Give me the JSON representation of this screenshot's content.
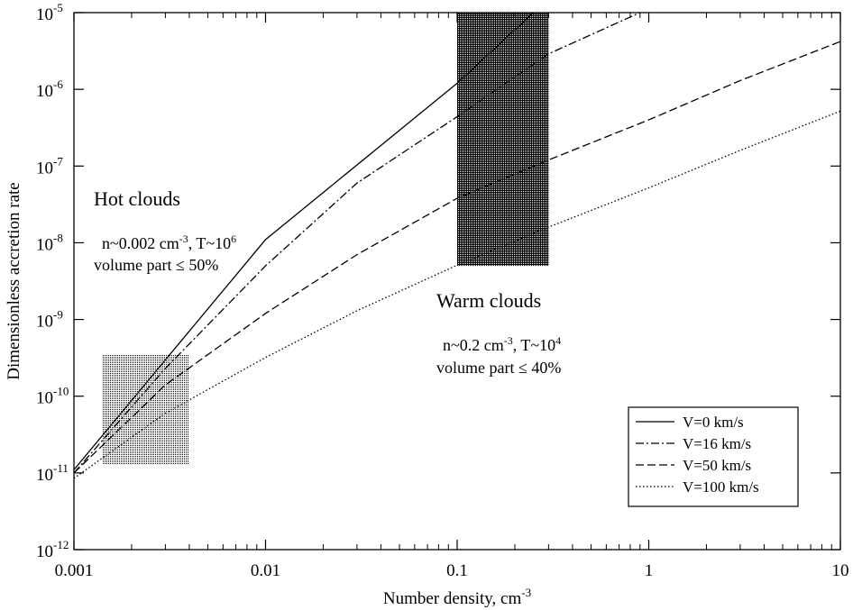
{
  "chart_data": {
    "type": "line",
    "xscale": "log",
    "yscale": "log",
    "xlim": [
      0.001,
      10
    ],
    "ylim": [
      1e-12,
      1e-05
    ],
    "xlabel": "Number density, cm",
    "xlabel_sup": "-3",
    "ylabel": "Dimensionless accretion rate",
    "x_ticks": [
      {
        "value": 0.001,
        "label": "0.001"
      },
      {
        "value": 0.01,
        "label": "0.01"
      },
      {
        "value": 0.1,
        "label": "0.1"
      },
      {
        "value": 1,
        "label": "1"
      },
      {
        "value": 10,
        "label": "10"
      }
    ],
    "y_ticks": [
      {
        "value": 1e-12,
        "base": "10",
        "exp": "-12"
      },
      {
        "value": 1e-11,
        "base": "10",
        "exp": "-11"
      },
      {
        "value": 1e-10,
        "base": "10",
        "exp": "-10"
      },
      {
        "value": 1e-09,
        "base": "10",
        "exp": "-9"
      },
      {
        "value": 1e-08,
        "base": "10",
        "exp": "-8"
      },
      {
        "value": 1e-07,
        "base": "10",
        "exp": "-7"
      },
      {
        "value": 1e-06,
        "base": "10",
        "exp": "-6"
      },
      {
        "value": 1e-05,
        "base": "10",
        "exp": "-5"
      }
    ],
    "series": [
      {
        "name": "V=0 km/s",
        "style": "solid",
        "points": [
          [
            0.001,
            1.1e-11
          ],
          [
            0.01,
            1.1e-08
          ],
          [
            0.1,
            1.2e-06
          ],
          [
            0.25,
            1e-05
          ]
        ]
      },
      {
        "name": "V=16 km/s",
        "style": "dashdot",
        "points": [
          [
            0.001,
            1e-11
          ],
          [
            0.003,
            2.3e-10
          ],
          [
            0.01,
            5e-09
          ],
          [
            0.03,
            6e-08
          ],
          [
            0.1,
            4.4e-07
          ],
          [
            0.3,
            2.9e-06
          ],
          [
            0.9,
            1e-05
          ]
        ]
      },
      {
        "name": "V=50 km/s",
        "style": "dashed",
        "points": [
          [
            0.001,
            1e-11
          ],
          [
            0.003,
            1.4e-10
          ],
          [
            0.01,
            1.2e-09
          ],
          [
            0.03,
            7e-09
          ],
          [
            0.1,
            3.8e-08
          ],
          [
            0.3,
            1.2e-07
          ],
          [
            1,
            4e-07
          ],
          [
            3,
            1.3e-06
          ],
          [
            10,
            4.2e-06
          ]
        ]
      },
      {
        "name": "V=100 km/s",
        "style": "dotted",
        "points": [
          [
            0.001,
            8.5e-12
          ],
          [
            0.003,
            6e-11
          ],
          [
            0.01,
            3.2e-10
          ],
          [
            0.03,
            1.3e-09
          ],
          [
            0.1,
            5.1e-09
          ],
          [
            0.3,
            1.6e-08
          ],
          [
            1,
            5.2e-08
          ],
          [
            3,
            1.6e-07
          ],
          [
            10,
            5.2e-07
          ]
        ]
      }
    ],
    "regions": [
      {
        "name": "hot",
        "x": [
          0.0014,
          0.004
        ],
        "y": [
          1.3e-11,
          3.5e-10
        ],
        "shade": "light"
      },
      {
        "name": "warm",
        "x": [
          0.1,
          0.3
        ],
        "y": [
          5e-09,
          1e-05
        ],
        "shade": "dark"
      }
    ],
    "annotations": {
      "hot_title": "Hot clouds",
      "hot_n_prefix": "n~0.002 cm",
      "hot_n_exp": "-3",
      "hot_t_prefix": ", T~10",
      "hot_t_exp": "6",
      "hot_volume": "volume part ≤ 50%",
      "warm_title": "Warm clouds",
      "warm_n_prefix": "n~0.2 cm",
      "warm_n_exp": "-3",
      "warm_t_prefix": ", T~10",
      "warm_t_exp": "4",
      "warm_volume": "volume part ≤ 40%"
    },
    "legend_position": "lower-right"
  }
}
